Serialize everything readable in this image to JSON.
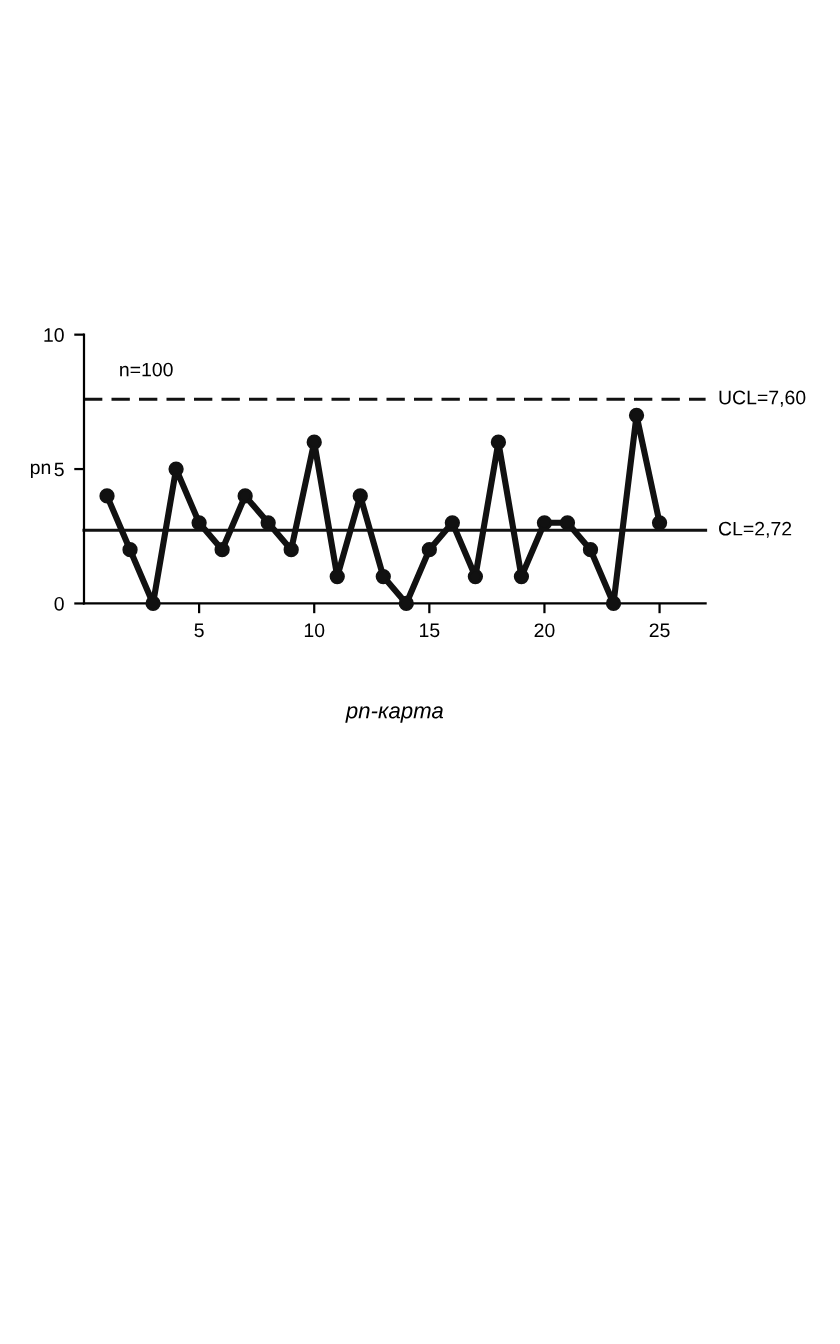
{
  "chart_data": {
    "type": "line",
    "ylabel": "pn",
    "xlabel": "pn-карта",
    "x": [
      1,
      2,
      3,
      4,
      5,
      6,
      7,
      8,
      9,
      10,
      11,
      12,
      13,
      14,
      15,
      16,
      17,
      18,
      19,
      20,
      21,
      22,
      23,
      24,
      25
    ],
    "values": [
      4,
      2,
      0,
      5,
      3,
      2,
      4,
      3,
      2,
      6,
      1,
      4,
      1,
      0,
      2,
      3,
      1,
      6,
      1,
      3,
      3,
      2,
      0,
      7,
      3
    ],
    "color": "#111111",
    "marker": "circle",
    "line_style": "solid",
    "xlim": [
      0,
      27
    ],
    "ylim": [
      0,
      10
    ],
    "xticks": [
      5,
      10,
      15,
      20,
      25
    ],
    "yticks": [
      0,
      5,
      10
    ],
    "ref_lines": [
      {
        "axis": "y",
        "value": 7.6,
        "label": "UCL=7,60",
        "line_style": "dashed",
        "color": "#111111"
      },
      {
        "axis": "y",
        "value": 2.72,
        "label": "CL=2,72",
        "line_style": "solid",
        "color": "#111111"
      }
    ],
    "annotations": [
      "n=100"
    ]
  }
}
